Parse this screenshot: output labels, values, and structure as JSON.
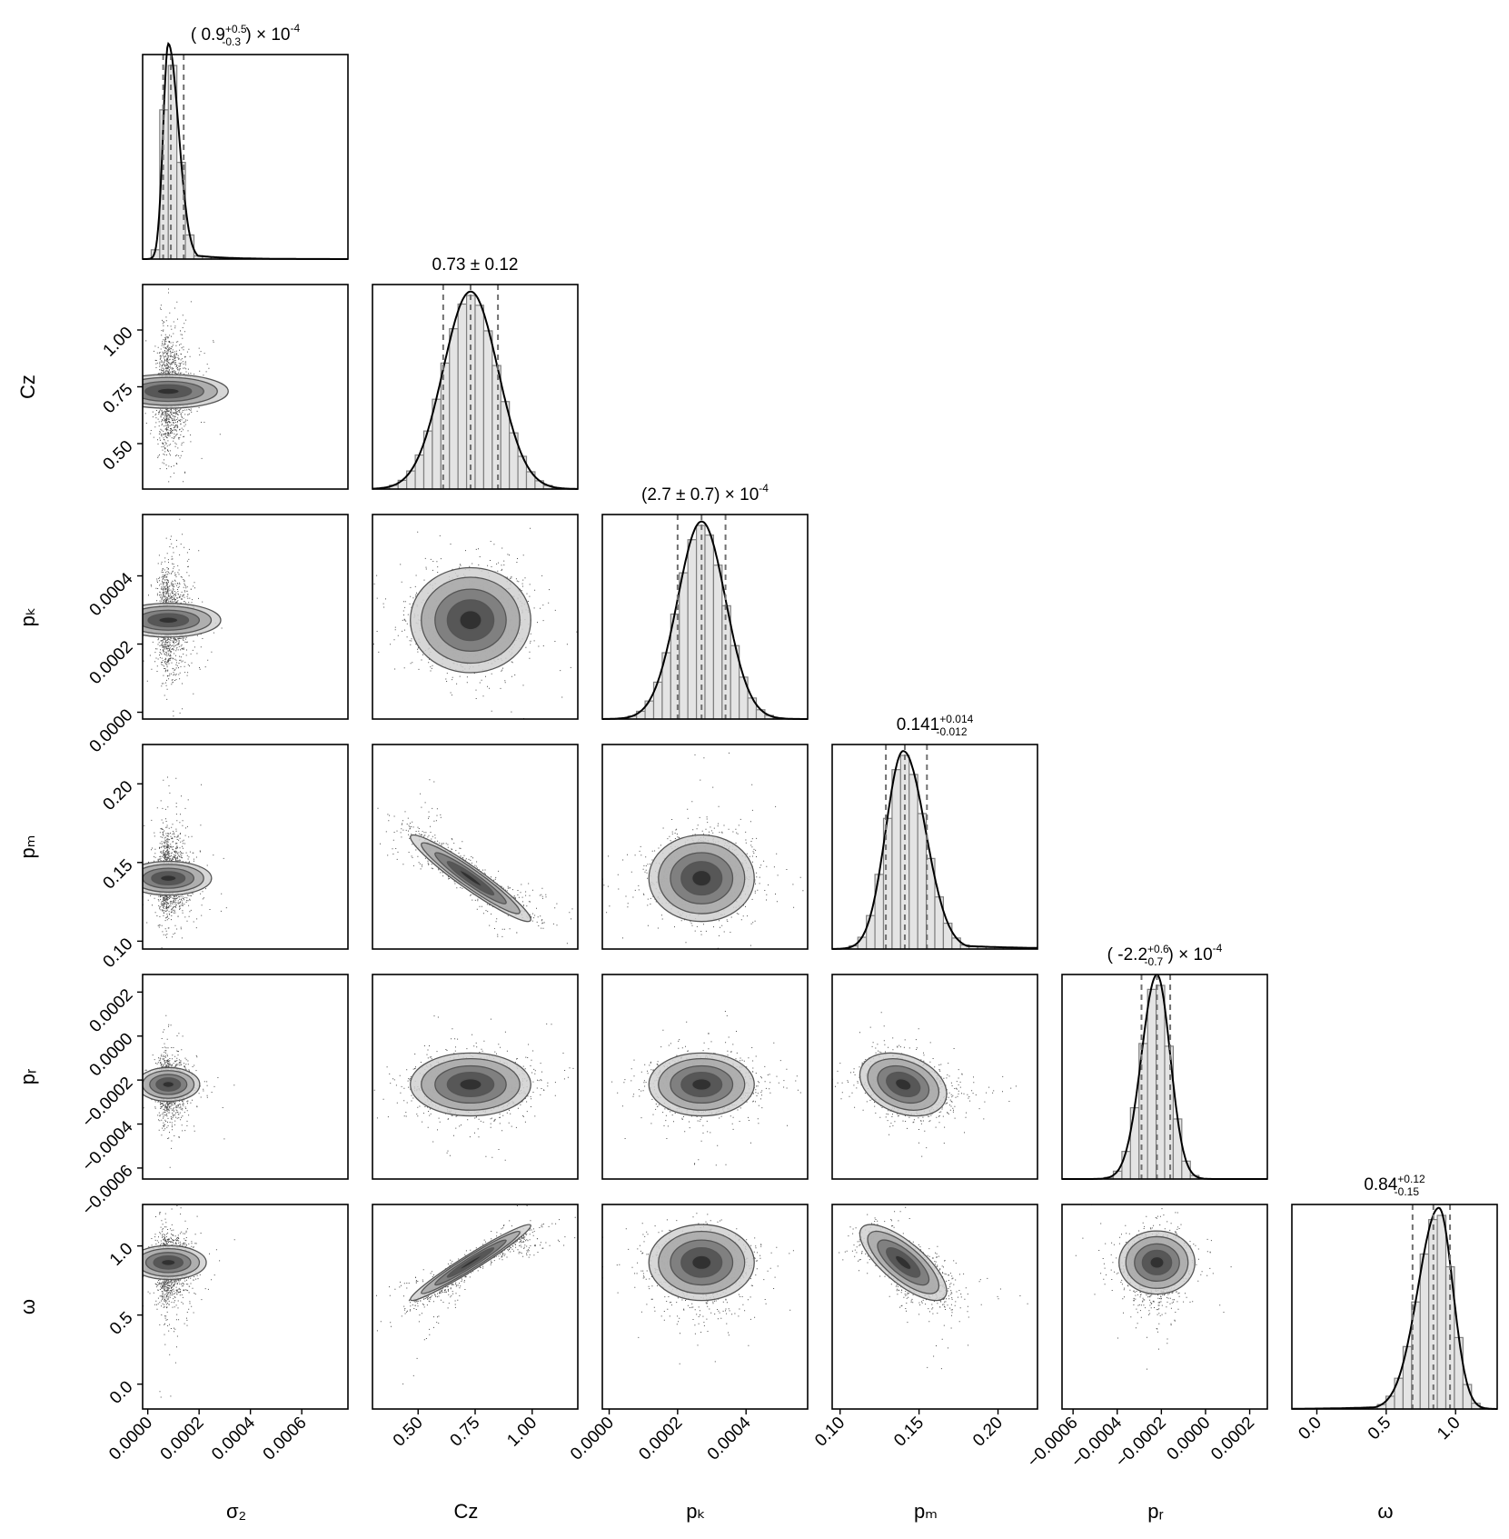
{
  "chart_data": {
    "type": "corner",
    "parameters": [
      {
        "symbol": "σ₂",
        "range": [
          -2e-05,
          0.00078
        ],
        "ticks": [
          0.0,
          0.0002,
          0.0004,
          0.0006
        ],
        "tick_labels": [
          "0.0000",
          "0.0002",
          "0.0004",
          "0.0006"
        ],
        "dist": {
          "shape": "skew-right",
          "peak": 8e-05,
          "width_left": 2e-05,
          "width_right": 4e-05
        },
        "quantiles": [
          6e-05,
          9e-05,
          0.00014
        ],
        "title_main": "( 0.9",
        "title_sup": "+0.5",
        "title_sub": "-0.3",
        "title_tail": ") × 10",
        "title_exp": "-4"
      },
      {
        "symbol": "Cz",
        "range": [
          0.3,
          1.2
        ],
        "ticks": [
          0.5,
          0.75,
          1.0
        ],
        "tick_labels": [
          "0.50",
          "0.75",
          "1.00"
        ],
        "dist": {
          "shape": "gaussian",
          "peak": 0.73,
          "width_left": 0.12,
          "width_right": 0.12
        },
        "quantiles": [
          0.61,
          0.73,
          0.85
        ],
        "title_main": "0.73 ± 0.12",
        "title_sup": "",
        "title_sub": "",
        "title_tail": "",
        "title_exp": ""
      },
      {
        "symbol": "pₖ",
        "range": [
          -2e-05,
          0.00058
        ],
        "ticks": [
          0.0,
          0.0002,
          0.0004
        ],
        "tick_labels": [
          "0.0000",
          "0.0002",
          "0.0004"
        ],
        "dist": {
          "shape": "gaussian",
          "peak": 0.00027,
          "width_left": 7e-05,
          "width_right": 7e-05
        },
        "quantiles": [
          0.0002,
          0.00027,
          0.00034
        ],
        "title_main": "(2.7 ± 0.7) × 10",
        "title_sup": "",
        "title_sub": "",
        "title_tail": "",
        "title_exp": "-4"
      },
      {
        "symbol": "pₘ",
        "range": [
          0.095,
          0.225
        ],
        "ticks": [
          0.1,
          0.15,
          0.2
        ],
        "tick_labels": [
          "0.10",
          "0.15",
          "0.20"
        ],
        "dist": {
          "shape": "skew-right",
          "peak": 0.14,
          "width_left": 0.011,
          "width_right": 0.014
        },
        "quantiles": [
          0.129,
          0.141,
          0.155
        ],
        "title_main": "0.141",
        "title_sup": "+0.014",
        "title_sub": "-0.012",
        "title_tail": "",
        "title_exp": ""
      },
      {
        "symbol": "pᵣ",
        "range": [
          -0.00065,
          0.00028
        ],
        "ticks": [
          -0.0006,
          -0.0004,
          -0.0002,
          0.0,
          0.0002
        ],
        "tick_labels": [
          "−0.0006",
          "−0.0004",
          "−0.0002",
          "0.0000",
          "0.0002"
        ],
        "dist": {
          "shape": "gaussian",
          "peak": -0.00022,
          "width_left": 7e-05,
          "width_right": 6e-05
        },
        "quantiles": [
          -0.00029,
          -0.00022,
          -0.00016
        ],
        "title_main": "( -2.2",
        "title_sup": "+0.6",
        "title_sub": "-0.7",
        "title_tail": ") × 10",
        "title_exp": "-4"
      },
      {
        "symbol": "ω",
        "range": [
          -0.18,
          1.3
        ],
        "ticks": [
          0.0,
          0.5,
          1.0
        ],
        "tick_labels": [
          "0.0",
          "0.5",
          "1.0"
        ],
        "dist": {
          "shape": "skew-left",
          "peak": 0.88,
          "width_left": 0.15,
          "width_right": 0.1
        },
        "quantiles": [
          0.69,
          0.84,
          0.96
        ],
        "title_main": "0.84",
        "title_sup": "+0.12",
        "title_sub": "-0.15",
        "title_tail": "",
        "title_exp": ""
      }
    ],
    "correlations": [
      [
        1,
        0,
        0,
        0,
        0,
        0
      ],
      [
        0,
        1,
        0,
        -0.95,
        0,
        0.97
      ],
      [
        0,
        0,
        1,
        0,
        0,
        0
      ],
      [
        0,
        -0.95,
        0,
        1,
        -0.3,
        -0.75
      ],
      [
        0,
        0,
        0,
        -0.3,
        1,
        0
      ],
      [
        0,
        0.97,
        0,
        -0.75,
        0,
        1
      ]
    ],
    "colors": {
      "fill": "#e4e4e4",
      "hist": "#808080",
      "curve": "#000000",
      "quantile": "#707070",
      "points": "#000000"
    }
  }
}
